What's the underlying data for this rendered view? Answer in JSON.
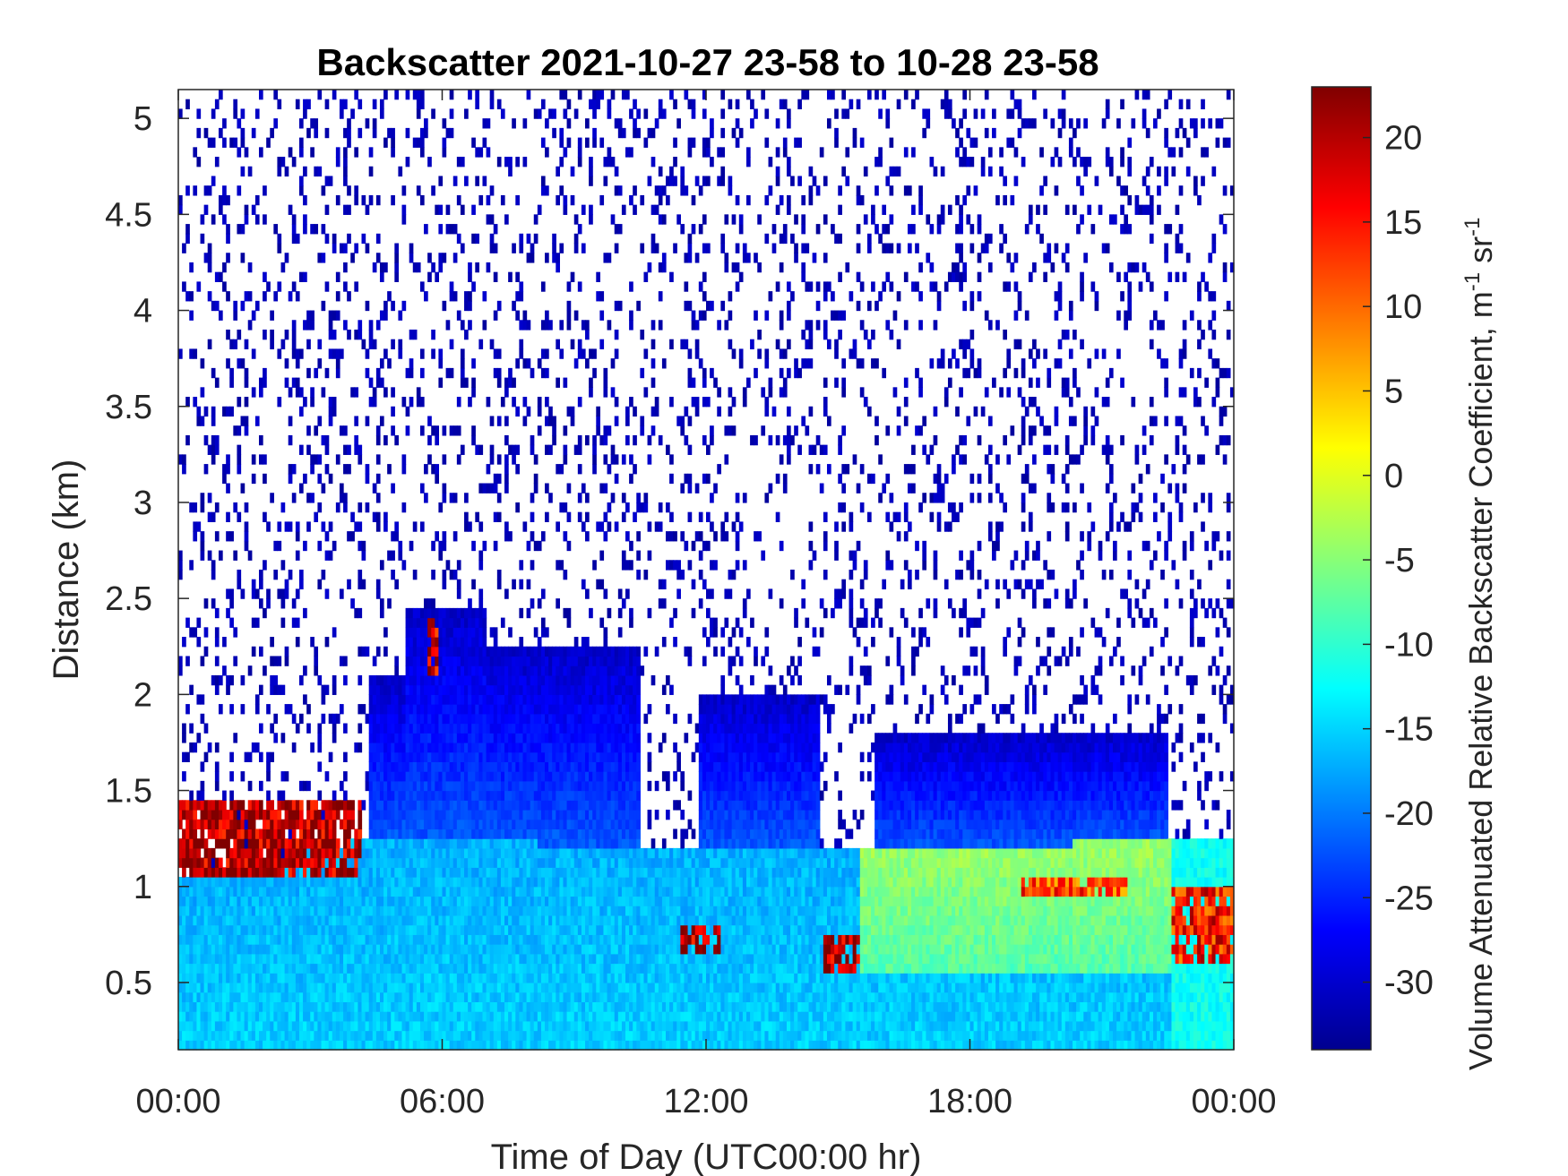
{
  "chart_data": {
    "type": "heatmap",
    "title": "Backscatter 2021-10-27 23-58 to 10-28 23-58",
    "xlabel": "Time of Day (UTC00:00 hr)",
    "ylabel": "Distance (km)",
    "colorbar": {
      "label_main": "Volume Attenuated Relative Backscatter Coefficient, m",
      "label_sup1": "-1",
      "label_mid": " sr",
      "label_sup2": "-1",
      "colormap": "jet",
      "range": [
        -34,
        23
      ],
      "ticks": [
        -30,
        -25,
        -20,
        -15,
        -10,
        -5,
        0,
        5,
        10,
        15,
        20
      ],
      "tick_labels": [
        "-30",
        "-25",
        "-20",
        "-15",
        "-10",
        "-5",
        "0",
        "5",
        "10",
        "15",
        "20"
      ]
    },
    "x_range_hours": [
      0,
      24
    ],
    "x_ticks_hours": [
      0,
      6,
      12,
      18,
      24
    ],
    "x_tick_labels": [
      "00:00",
      "06:00",
      "12:00",
      "18:00",
      "00:00"
    ],
    "y_range_km": [
      0.15,
      5.15
    ],
    "y_ticks_km": [
      0.5,
      1,
      1.5,
      2,
      2.5,
      3,
      3.5,
      4,
      4.5,
      5
    ],
    "y_tick_labels": [
      "0.5",
      "1",
      "1.5",
      "2",
      "2.5",
      "3",
      "3.5",
      "4",
      "4.5",
      "5"
    ],
    "features_approx": {
      "boundary_layer_top_km": [
        {
          "time_h": 0,
          "km": 1.05
        },
        {
          "time_h": 4.3,
          "km": 1.25
        },
        {
          "time_h": 12,
          "km": 1.2
        },
        {
          "time_h": 18,
          "km": 1.2
        },
        {
          "time_h": 22.6,
          "km": 1.25
        }
      ],
      "cloud_bands": [
        {
          "t0_h": 0,
          "t1_h": 4.2,
          "z0_km": 1.05,
          "z1_km": 1.45,
          "value": 20
        },
        {
          "t0_h": 5.7,
          "t1_h": 5.9,
          "z0_km": 2.1,
          "z1_km": 2.4,
          "value": 18
        },
        {
          "t0_h": 11.4,
          "t1_h": 12.3,
          "z0_km": 0.65,
          "z1_km": 0.8,
          "value": 20
        },
        {
          "t0_h": 14.7,
          "t1_h": 15.5,
          "z0_km": 0.55,
          "z1_km": 0.75,
          "value": 20
        },
        {
          "t0_h": 19.2,
          "t1_h": 21.6,
          "z0_km": 0.95,
          "z1_km": 1.05,
          "value": 12
        },
        {
          "t0_h": 22.6,
          "t1_h": 24,
          "z0_km": 0.6,
          "z1_km": 1.0,
          "value": 15
        }
      ],
      "aerosol_layer_top_km": [
        {
          "t0_h": 4.3,
          "t1_h": 5.2,
          "km": 2.1
        },
        {
          "t0_h": 5.2,
          "t1_h": 7.0,
          "km": 2.45
        },
        {
          "t0_h": 7.0,
          "t1_h": 10.5,
          "km": 2.25
        },
        {
          "t0_h": 11.8,
          "t1_h": 14.6,
          "km": 2.0
        },
        {
          "t0_h": 15.8,
          "t1_h": 22.5,
          "km": 1.8
        }
      ],
      "noise_value_above_layer": -31
    }
  }
}
